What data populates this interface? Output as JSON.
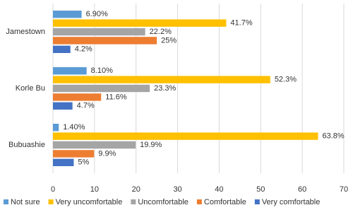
{
  "chart_data": {
    "type": "hbar",
    "categories": [
      "Jamestown",
      "Korle Bu",
      "Bubuashie"
    ],
    "series": [
      {
        "name": "Not sure",
        "color": "#5b9bd5",
        "values": [
          6.9,
          8.1,
          1.4
        ],
        "value_labels": [
          "6.90%",
          "8.10%",
          "1.40%"
        ]
      },
      {
        "name": "Very uncomfortable",
        "color": "#ffc000",
        "values": [
          41.7,
          52.3,
          63.8
        ],
        "value_labels": [
          "41.7%",
          "52.3%",
          "63.8%"
        ]
      },
      {
        "name": "Uncomfortable",
        "color": "#a5a5a5",
        "values": [
          22.2,
          23.3,
          19.9
        ],
        "value_labels": [
          "22.2%",
          "23.3%",
          "19.9%"
        ]
      },
      {
        "name": "Comfortable",
        "color": "#ed7d31",
        "values": [
          25,
          11.6,
          9.9
        ],
        "value_labels": [
          "25%",
          "11.6%",
          "9.9%"
        ]
      },
      {
        "name": "Very comfortable",
        "color": "#4472c4",
        "values": [
          4.2,
          4.7,
          5
        ],
        "value_labels": [
          "4.2%",
          "4.7%",
          "5%"
        ]
      }
    ],
    "xlim": [
      0,
      70
    ],
    "xticks": [
      0,
      10,
      20,
      30,
      40,
      50,
      60,
      70
    ],
    "grid": true,
    "legend": "bottom"
  }
}
